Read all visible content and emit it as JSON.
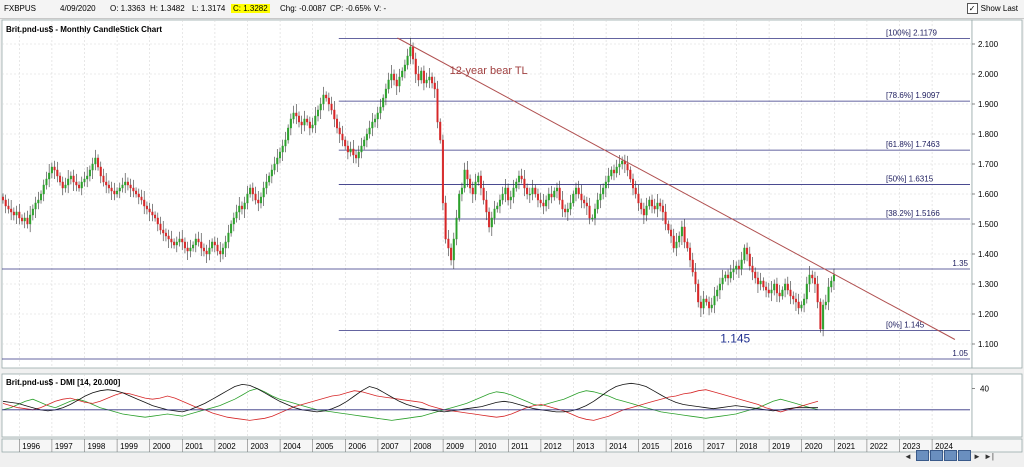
{
  "toolbar": {
    "symbol": "FXBPUS",
    "date": "4/09/2020",
    "open": "O: 1.3363",
    "high": "H: 1.3482",
    "low": "L: 1.3174",
    "close": "C: 1.3282",
    "chg": "Chg: -0.0087",
    "cp": "CP: -0.65%",
    "v": "V: -",
    "show_last": "Show Last"
  },
  "chart_data": [
    {
      "type": "candlestick",
      "title": "Brit.pnd-us$ - Monthly CandleStick Chart",
      "ylim": [
        1.05,
        2.16
      ],
      "y_ticks": [
        "2.100",
        "2.000",
        "1.900",
        "1.800",
        "1.700",
        "1.600",
        "1.500",
        "1.400",
        "1.300",
        "1.200",
        "1.100"
      ],
      "x_labels": [
        "1996",
        "1997",
        "1998",
        "1999",
        "2000",
        "2001",
        "2002",
        "2003",
        "2004",
        "2005",
        "2006",
        "2007",
        "2008",
        "2009",
        "2010",
        "2011",
        "2012",
        "2013",
        "2014",
        "2015",
        "2016",
        "2017",
        "2018",
        "2019",
        "2020",
        "2021",
        "2022",
        "2023",
        "2024"
      ],
      "fib_levels": [
        {
          "label": "[100%] 2.1179",
          "value": 2.1179
        },
        {
          "label": "[78.6%] 1.9097",
          "value": 1.9097
        },
        {
          "label": "[61.8%] 1.7463",
          "value": 1.7463
        },
        {
          "label": "[50%] 1.6315",
          "value": 1.6315
        },
        {
          "label": "[38.2%] 1.5166",
          "value": 1.5166
        },
        {
          "label": "[0%] 1.145",
          "value": 1.145
        }
      ],
      "horizontal_lines": [
        {
          "label": "1.35",
          "value": 1.35
        },
        {
          "label": "1.05",
          "value": 1.05
        }
      ],
      "trendline": {
        "label": "12-year bear TL",
        "start": [
          2007.6,
          2.12
        ],
        "end": [
          2024.7,
          1.115
        ]
      },
      "annotation": "1.145",
      "series": [
        {
          "name": "close",
          "x_start": 1995.5,
          "step": 0.0833,
          "values": [
            1.58,
            1.56,
            1.55,
            1.54,
            1.53,
            1.54,
            1.52,
            1.51,
            1.52,
            1.5,
            1.53,
            1.55,
            1.57,
            1.58,
            1.6,
            1.63,
            1.65,
            1.67,
            1.69,
            1.68,
            1.66,
            1.64,
            1.62,
            1.63,
            1.65,
            1.66,
            1.64,
            1.63,
            1.62,
            1.64,
            1.65,
            1.66,
            1.68,
            1.7,
            1.72,
            1.69,
            1.66,
            1.64,
            1.63,
            1.62,
            1.61,
            1.6,
            1.61,
            1.62,
            1.63,
            1.64,
            1.63,
            1.62,
            1.61,
            1.6,
            1.59,
            1.58,
            1.56,
            1.55,
            1.54,
            1.53,
            1.52,
            1.5,
            1.48,
            1.47,
            1.46,
            1.45,
            1.44,
            1.43,
            1.44,
            1.45,
            1.44,
            1.42,
            1.41,
            1.42,
            1.43,
            1.45,
            1.44,
            1.42,
            1.41,
            1.4,
            1.42,
            1.44,
            1.43,
            1.41,
            1.4,
            1.42,
            1.44,
            1.47,
            1.5,
            1.52,
            1.54,
            1.56,
            1.55,
            1.57,
            1.6,
            1.62,
            1.6,
            1.58,
            1.57,
            1.59,
            1.62,
            1.64,
            1.66,
            1.68,
            1.7,
            1.72,
            1.74,
            1.76,
            1.78,
            1.82,
            1.85,
            1.87,
            1.86,
            1.84,
            1.83,
            1.85,
            1.84,
            1.82,
            1.83,
            1.86,
            1.88,
            1.9,
            1.93,
            1.92,
            1.9,
            1.88,
            1.85,
            1.82,
            1.8,
            1.78,
            1.76,
            1.74,
            1.75,
            1.73,
            1.72,
            1.74,
            1.76,
            1.78,
            1.8,
            1.82,
            1.84,
            1.85,
            1.87,
            1.89,
            1.92,
            1.95,
            1.98,
            2.0,
            1.98,
            1.96,
            1.99,
            2.01,
            2.03,
            2.06,
            2.09,
            2.05,
            2.0,
            1.98,
            2.01,
            1.97,
            1.98,
            1.99,
            1.97,
            1.95,
            1.84,
            1.78,
            1.57,
            1.45,
            1.42,
            1.38,
            1.45,
            1.52,
            1.6,
            1.62,
            1.68,
            1.65,
            1.62,
            1.6,
            1.64,
            1.66,
            1.62,
            1.58,
            1.54,
            1.49,
            1.52,
            1.55,
            1.56,
            1.58,
            1.6,
            1.62,
            1.58,
            1.59,
            1.62,
            1.64,
            1.66,
            1.65,
            1.62,
            1.6,
            1.6,
            1.62,
            1.6,
            1.58,
            1.57,
            1.56,
            1.58,
            1.6,
            1.59,
            1.61,
            1.62,
            1.58,
            1.55,
            1.54,
            1.55,
            1.57,
            1.6,
            1.62,
            1.6,
            1.58,
            1.57,
            1.56,
            1.52,
            1.52,
            1.55,
            1.58,
            1.6,
            1.62,
            1.64,
            1.66,
            1.68,
            1.67,
            1.69,
            1.7,
            1.71,
            1.7,
            1.68,
            1.65,
            1.62,
            1.6,
            1.57,
            1.55,
            1.53,
            1.56,
            1.58,
            1.56,
            1.55,
            1.57,
            1.56,
            1.54,
            1.5,
            1.48,
            1.46,
            1.42,
            1.44,
            1.46,
            1.49,
            1.44,
            1.42,
            1.38,
            1.34,
            1.3,
            1.24,
            1.22,
            1.25,
            1.24,
            1.22,
            1.23,
            1.26,
            1.28,
            1.3,
            1.32,
            1.33,
            1.32,
            1.34,
            1.35,
            1.36,
            1.35,
            1.38,
            1.42,
            1.4,
            1.36,
            1.34,
            1.32,
            1.3,
            1.31,
            1.29,
            1.28,
            1.27,
            1.28,
            1.3,
            1.27,
            1.26,
            1.28,
            1.3,
            1.28,
            1.26,
            1.25,
            1.24,
            1.22,
            1.23,
            1.25,
            1.3,
            1.33,
            1.32,
            1.3,
            1.24,
            1.15,
            1.23,
            1.24,
            1.29,
            1.31,
            1.33
          ]
        }
      ]
    },
    {
      "type": "line",
      "title": "Brit.pnd-us$ - DMI [14, 20.000]",
      "y_ticks": [
        "40"
      ],
      "series": [
        {
          "name": "+DI",
          "values": [
            20,
            22,
            25,
            28,
            30,
            27,
            24,
            22,
            25,
            28,
            30,
            28,
            25,
            22,
            20,
            18,
            16,
            15,
            14,
            13,
            14,
            15,
            16,
            15,
            14,
            16,
            18,
            20,
            22,
            24,
            27,
            30,
            34,
            38,
            40,
            37,
            33,
            30,
            28,
            26,
            24,
            22,
            20,
            19,
            18,
            17,
            16,
            15,
            14,
            13,
            12,
            11,
            10,
            11,
            12,
            13,
            14,
            16,
            18,
            20,
            22,
            24,
            26,
            29,
            32,
            35,
            37,
            36,
            34,
            31,
            28,
            25,
            24,
            26,
            28,
            30,
            33,
            36,
            38,
            37,
            35,
            33,
            30,
            28,
            26,
            24,
            22,
            20,
            18,
            17,
            16,
            15,
            14,
            13,
            12,
            13,
            14,
            15,
            16,
            18,
            20,
            22,
            25,
            28,
            30,
            28,
            26,
            24,
            22,
            20
          ]
        },
        {
          "name": "-DI",
          "values": [
            26,
            24,
            22,
            21,
            20,
            22,
            25,
            28,
            30,
            31,
            29,
            27,
            26,
            28,
            31,
            34,
            36,
            35,
            33,
            31,
            30,
            31,
            33,
            31,
            28,
            25,
            22,
            20,
            17,
            15,
            13,
            12,
            11,
            10,
            11,
            12,
            14,
            17,
            20,
            23,
            25,
            27,
            29,
            31,
            33,
            34,
            36,
            38,
            37,
            35,
            33,
            32,
            31,
            30,
            29,
            28,
            27,
            24,
            22,
            20,
            19,
            18,
            17,
            16,
            15,
            14,
            13,
            14,
            16,
            19,
            22,
            24,
            25,
            23,
            21,
            19,
            16,
            13,
            11,
            10,
            12,
            14,
            17,
            20,
            22,
            24,
            26,
            28,
            30,
            32,
            33,
            35,
            36,
            38,
            39,
            37,
            35,
            33,
            31,
            29,
            27,
            25,
            22,
            20,
            18,
            20,
            22,
            24,
            26,
            28
          ]
        },
        {
          "name": "ADX",
          "values": [
            28,
            27,
            26,
            24,
            22,
            20,
            19,
            20,
            22,
            25,
            29,
            33,
            36,
            38,
            39,
            38,
            36,
            33,
            30,
            27,
            24,
            22,
            20,
            19,
            18,
            20,
            23,
            26,
            30,
            34,
            38,
            42,
            44,
            43,
            40,
            36,
            32,
            28,
            25,
            22,
            20,
            19,
            18,
            19,
            21,
            24,
            28,
            33,
            38,
            42,
            40,
            36,
            32,
            28,
            25,
            23,
            21,
            20,
            19,
            18,
            19,
            20,
            21,
            22,
            23,
            25,
            27,
            28,
            27,
            25,
            23,
            21,
            20,
            19,
            18,
            18,
            19,
            21,
            24,
            28,
            33,
            38,
            42,
            44,
            45,
            44,
            42,
            38,
            34,
            30,
            27,
            25,
            24,
            23,
            22,
            21,
            22,
            23,
            24,
            23,
            22,
            21,
            20,
            19,
            20,
            21,
            22,
            22,
            22,
            22
          ]
        }
      ]
    }
  ]
}
